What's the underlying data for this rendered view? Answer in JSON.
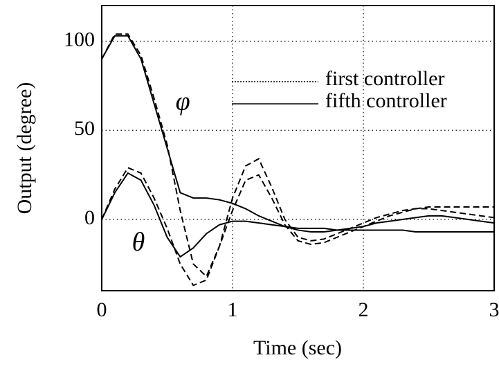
{
  "chart_data": {
    "type": "line",
    "x_label": "Time (sec)",
    "y_label": "Output (degree)",
    "x": [
      0,
      0.1,
      0.2,
      0.3,
      0.4,
      0.5,
      0.6,
      0.7,
      0.8,
      0.9,
      1,
      1.1,
      1.2,
      1.3,
      1.4,
      1.5,
      1.6,
      1.7,
      1.8,
      1.9,
      2,
      2.1,
      2.2,
      2.3,
      2.4,
      2.5,
      2.6,
      2.7,
      2.8,
      2.9,
      3
    ],
    "series": [
      {
        "name": "first controller",
        "color": "#000000",
        "dash": "dashed",
        "lines": [
          {
            "values": [
              90,
              104,
              104,
              92,
              68,
              42,
              5,
              -25,
              -32,
              -15,
              12,
              30,
              34,
              18,
              0,
              -10,
              -12,
              -11,
              -8,
              -5,
              -2,
              1,
              3,
              5,
              6,
              6,
              5,
              4,
              3,
              2,
              1
            ]
          },
          {
            "values": [
              0,
              17,
              29,
              26,
              12,
              -5,
              -25,
              -37,
              -34,
              -15,
              5,
              22,
              25,
              12,
              -3,
              -12,
              -14,
              -13,
              -10,
              -7,
              -4,
              -1,
              2,
              4,
              6,
              7,
              7,
              7,
              7,
              7,
              7
            ]
          }
        ]
      },
      {
        "name": "fifth controller",
        "color": "#000000",
        "dash": "solid",
        "lines": [
          {
            "values": [
              90,
              103,
              103,
              90,
              65,
              40,
              15,
              12,
              12,
              11,
              9,
              6,
              2,
              -1,
              -4,
              -6,
              -7,
              -7,
              -6,
              -5,
              -4,
              -2,
              -1,
              0,
              1,
              2,
              2,
              1,
              0,
              -1,
              -2
            ]
          },
          {
            "values": [
              0,
              15,
              26,
              22,
              8,
              -10,
              -21,
              -16,
              -8,
              -3,
              -1,
              -1,
              -2,
              -3,
              -4,
              -5,
              -5,
              -5,
              -6,
              -6,
              -6,
              -6,
              -6,
              -6,
              -7,
              -7,
              -7,
              -7,
              -7,
              -7,
              -7
            ]
          }
        ]
      }
    ],
    "annotations": [
      {
        "text": "φ",
        "x": 0.62,
        "y": 65
      },
      {
        "text": "θ",
        "x": 0.28,
        "y": -14
      }
    ],
    "xlim": [
      0,
      3
    ],
    "ylim": [
      -40,
      120
    ],
    "xticks": [
      0,
      1,
      2,
      3
    ],
    "yticks": [
      0,
      50,
      100
    ],
    "grid": true,
    "legend": "upper right"
  }
}
